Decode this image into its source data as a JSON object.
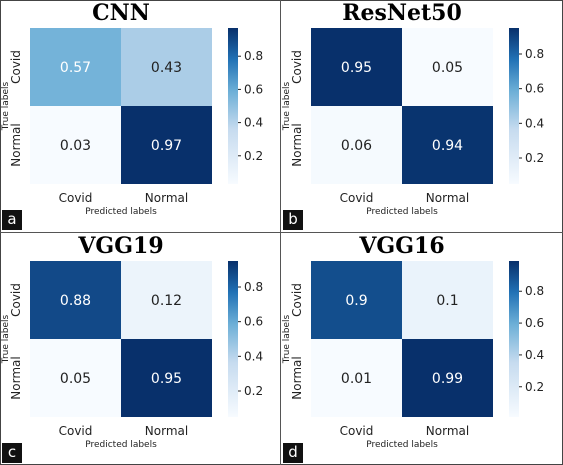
{
  "colormap": [
    "#f7fbff",
    "#08306b"
  ],
  "colorbar_ticks": [
    "0.8",
    "0.6",
    "0.4",
    "0.2"
  ],
  "chart_data": [
    {
      "type": "heatmap",
      "label": "a",
      "title": "CNN",
      "xlabel": "Predicted labels",
      "ylabel": "True labels",
      "x_categories": [
        "Covid",
        "Normal"
      ],
      "y_categories": [
        "Covid",
        "Normal"
      ],
      "values": [
        [
          0.57,
          0.43
        ],
        [
          0.03,
          0.97
        ]
      ],
      "display": [
        [
          "0.57",
          "0.43"
        ],
        [
          "0.03",
          "0.97"
        ]
      ],
      "color_range": [
        0.03,
        0.97
      ]
    },
    {
      "type": "heatmap",
      "label": "b",
      "title": "ResNet50",
      "xlabel": "Predicted labels",
      "ylabel": "True labels",
      "x_categories": [
        "Covid",
        "Normal"
      ],
      "y_categories": [
        "Covid",
        "Normal"
      ],
      "values": [
        [
          0.95,
          0.05
        ],
        [
          0.06,
          0.94
        ]
      ],
      "display": [
        [
          "0.95",
          "0.05"
        ],
        [
          "0.06",
          "0.94"
        ]
      ],
      "color_range": [
        0.05,
        0.95
      ]
    },
    {
      "type": "heatmap",
      "label": "c",
      "title": "VGG19",
      "xlabel": "Predicted labels",
      "ylabel": "True labels",
      "x_categories": [
        "Covid",
        "Normal"
      ],
      "y_categories": [
        "Covid",
        "Normal"
      ],
      "values": [
        [
          0.88,
          0.12
        ],
        [
          0.05,
          0.95
        ]
      ],
      "display": [
        [
          "0.88",
          "0.12"
        ],
        [
          "0.05",
          "0.95"
        ]
      ],
      "color_range": [
        0.05,
        0.95
      ]
    },
    {
      "type": "heatmap",
      "label": "d",
      "title": "VGG16",
      "xlabel": "Predicted labels",
      "ylabel": "True labels",
      "x_categories": [
        "Covid",
        "Normal"
      ],
      "y_categories": [
        "Covid",
        "Normal"
      ],
      "values": [
        [
          0.9,
          0.1
        ],
        [
          0.01,
          0.99
        ]
      ],
      "display": [
        [
          "0.9",
          "0.1"
        ],
        [
          "0.01",
          "0.99"
        ]
      ],
      "color_range": [
        0.01,
        0.99
      ]
    }
  ]
}
